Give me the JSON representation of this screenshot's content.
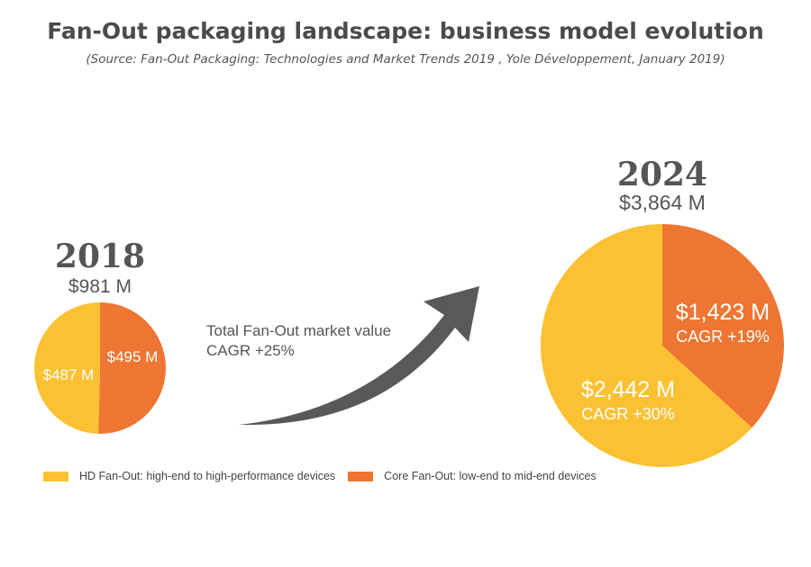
{
  "chart_data": {
    "type": "pie",
    "title": "Fan-Out packaging landscape: business model evolution",
    "subtitle": "(Source: Fan-Out Packaging: Technologies and Market Trends 2019 , Yole Développement, January 2019)",
    "series_colors": {
      "hd": "#FBC132",
      "core": "#EE7632"
    },
    "legend": [
      {
        "key": "hd",
        "label": "HD Fan-Out: high-end to high-performance devices",
        "color": "#FBC132"
      },
      {
        "key": "core",
        "label": "Core Fan-Out: low-end to mid-end devices",
        "color": "#EE7632"
      }
    ],
    "legend_position": "bottom-left",
    "pies": [
      {
        "year": "2018",
        "total_label": "$981 M",
        "total": 981,
        "slices": [
          {
            "key": "core",
            "value": 495,
            "label": "$495 M",
            "cagr": ""
          },
          {
            "key": "hd",
            "value": 487,
            "label": "$487 M",
            "cagr": ""
          }
        ]
      },
      {
        "year": "2024",
        "total_label": "$3,864 M",
        "total": 3864,
        "slices": [
          {
            "key": "core",
            "value": 1423,
            "label": "$1,423 M",
            "cagr": "CAGR +19%"
          },
          {
            "key": "hd",
            "value": 2442,
            "label": "$2,442 M",
            "cagr": "CAGR +30%"
          }
        ]
      }
    ],
    "annotation": {
      "line1": "Total Fan-Out market value",
      "line2": "CAGR +25%"
    },
    "arrow_color": "#595959"
  }
}
